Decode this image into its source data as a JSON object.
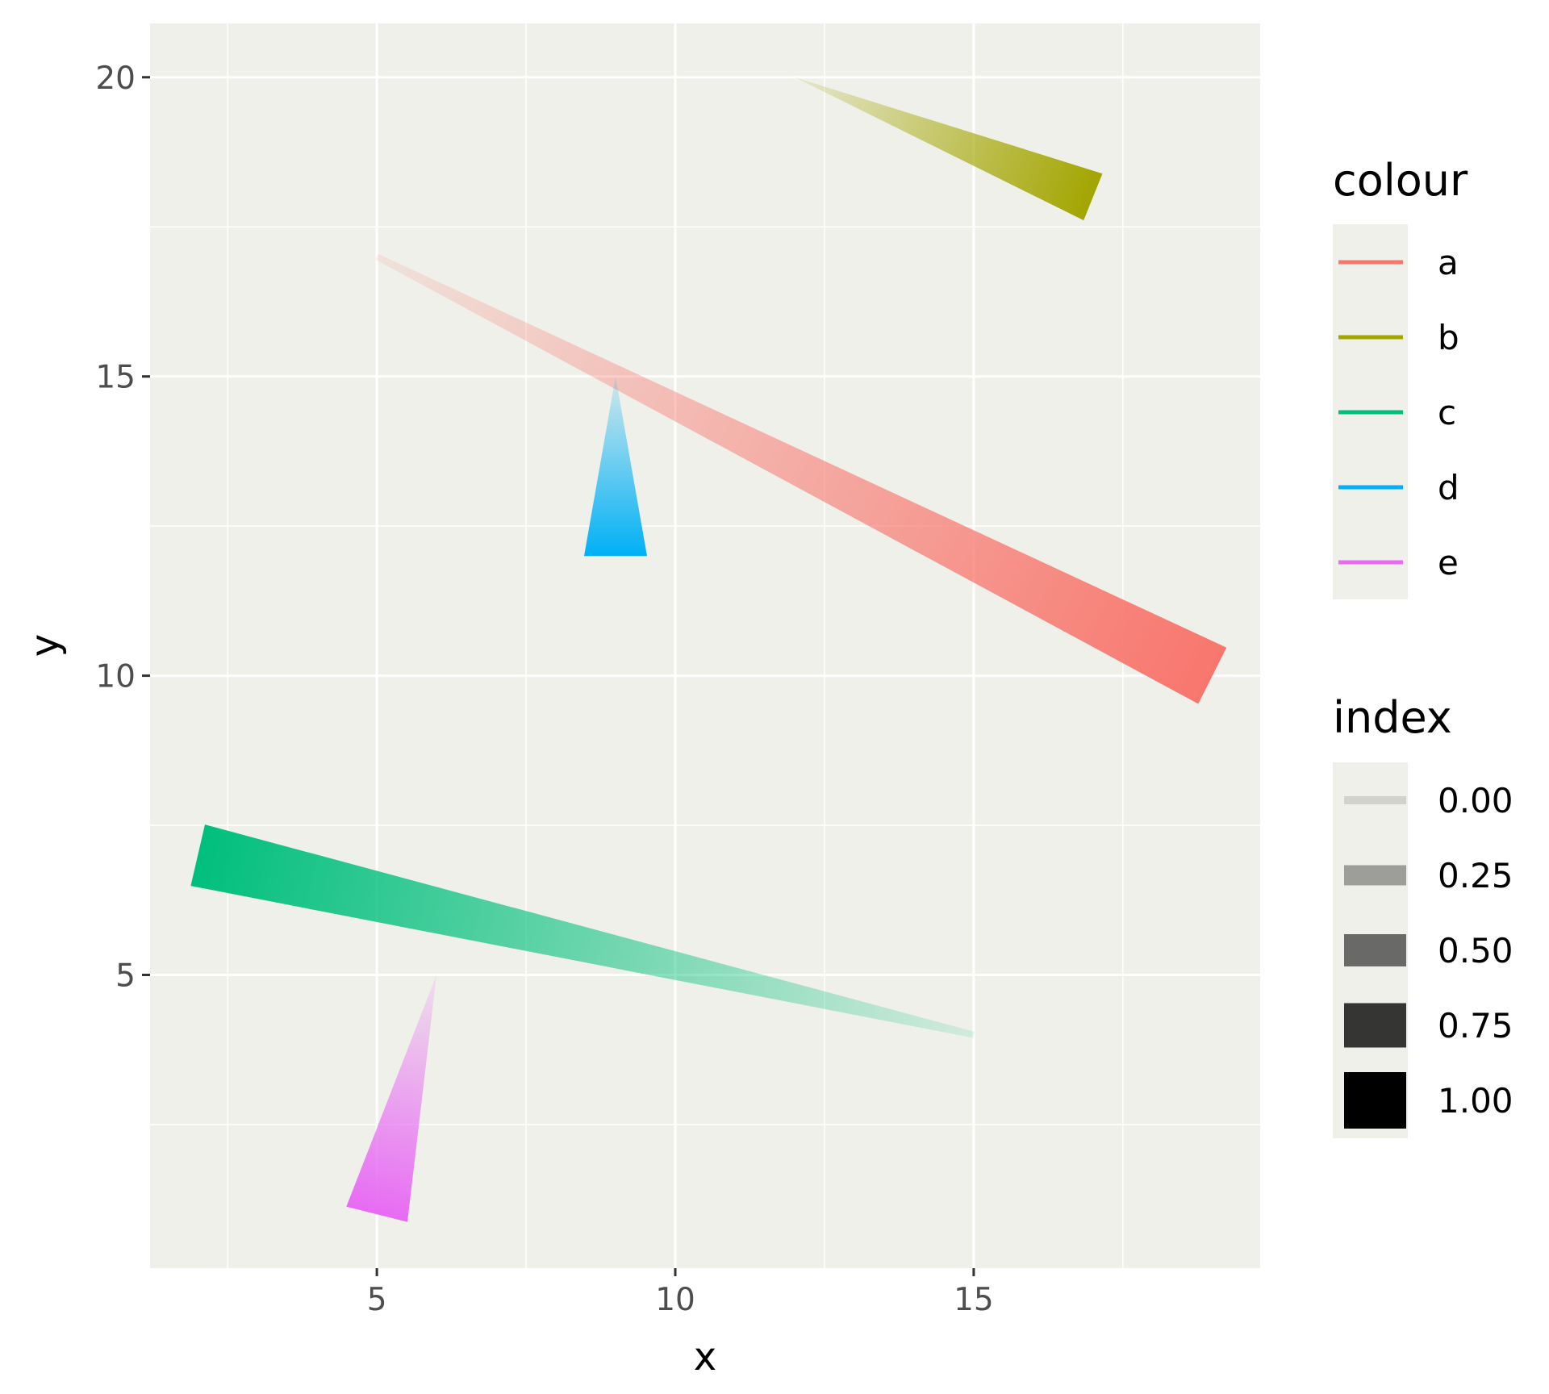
{
  "chart_data": {
    "type": "line",
    "title": "",
    "xlabel": "x",
    "ylabel": "y",
    "xlim": [
      1.2,
      19.8
    ],
    "ylim": [
      0.1,
      20.9
    ],
    "xticks": [
      5,
      10,
      15
    ],
    "yticks": [
      5,
      10,
      15,
      20
    ],
    "grid": true,
    "panel_color": "#EFF0EA",
    "series": [
      {
        "name": "a",
        "color": "#F8766D",
        "x": [
          5,
          19
        ],
        "y": [
          17,
          10
        ],
        "width_range": [
          0.1,
          1.0
        ]
      },
      {
        "name": "b",
        "color": "#A3A500",
        "x": [
          12,
          17
        ],
        "y": [
          20,
          18
        ],
        "width_range": [
          0.0,
          0.8
        ]
      },
      {
        "name": "c",
        "color": "#00BF7D",
        "x": [
          15,
          2
        ],
        "y": [
          4,
          7
        ],
        "width_range": [
          0.1,
          1.0
        ]
      },
      {
        "name": "d",
        "color": "#00B0F6",
        "x": [
          9,
          9
        ],
        "y": [
          15,
          12
        ],
        "width_range": [
          0.0,
          1.0
        ]
      },
      {
        "name": "e",
        "color": "#E76BF3",
        "x": [
          6,
          5
        ],
        "y": [
          5,
          1
        ],
        "width_range": [
          0.0,
          1.0
        ]
      }
    ],
    "legends": [
      {
        "title": "colour",
        "entries": [
          "a",
          "b",
          "c",
          "d",
          "e"
        ]
      },
      {
        "title": "index",
        "entries": [
          "0.00",
          "0.25",
          "0.50",
          "0.75",
          "1.00"
        ],
        "values": [
          0.0,
          0.25,
          0.5,
          0.75,
          1.0
        ]
      }
    ],
    "legend_placement": "right"
  }
}
